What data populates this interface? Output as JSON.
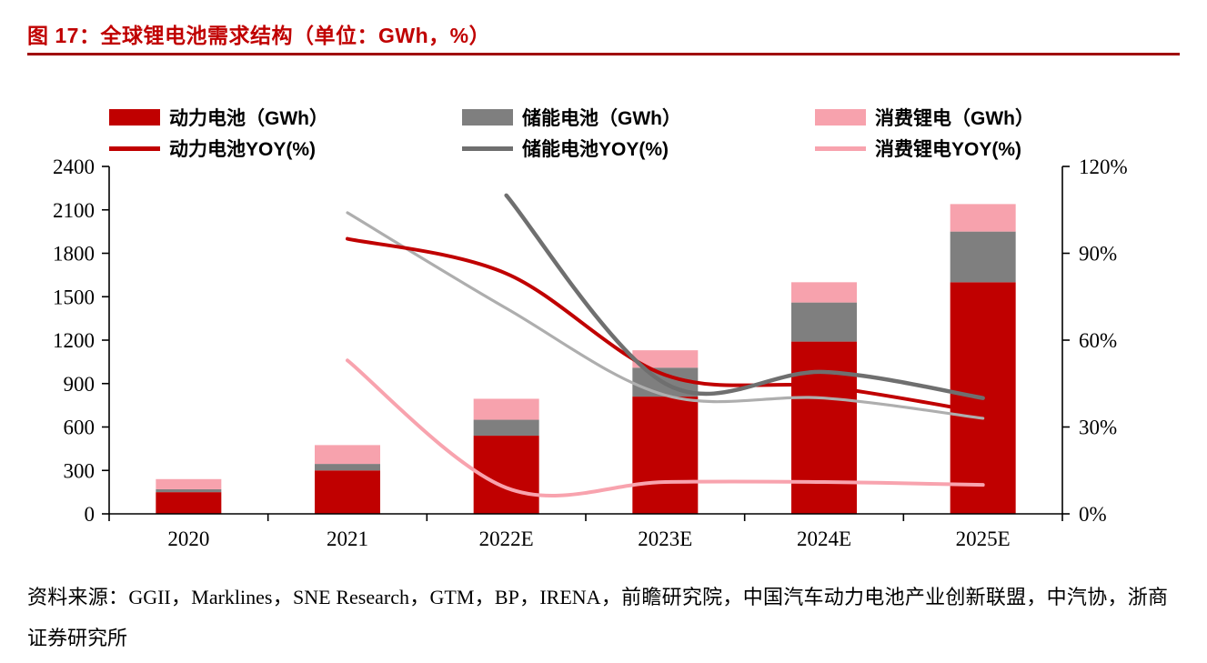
{
  "figure": {
    "title": "图 17：全球锂电池需求结构（单位：GWh，%）"
  },
  "source": {
    "text": "资料来源：GGII，Marklines，SNE Research，GTM，BP，IRENA，前瞻研究院，中国汽车动力电池产业创新联盟，中汽协，浙商证券研究所"
  },
  "colors": {
    "title_red": "#c00000",
    "divider_red": "#a00000",
    "bar_red": "#c00000",
    "bar_gray": "#7f7f7f",
    "bar_pink": "#f7a2ad",
    "line_red": "#c00000",
    "line_dark_gray": "#6f6f6f",
    "line_pink": "#f8a3ae",
    "line_light_gray": "#aeaeae"
  },
  "chart_data": {
    "type": "bar",
    "subtype": "stacked-bars-with-yoy-lines",
    "title": "全球锂电池需求结构（单位：GWh，%）",
    "categories": [
      "2020",
      "2021",
      "2022E",
      "2023E",
      "2024E",
      "2025E"
    ],
    "bar_series": [
      {
        "name": "动力电池（GWh）",
        "color": "#c00000",
        "values": [
          150,
          300,
          540,
          810,
          1190,
          1600
        ]
      },
      {
        "name": "储能电池（GWh）",
        "color": "#7f7f7f",
        "values": [
          20,
          45,
          110,
          200,
          270,
          350
        ]
      },
      {
        "name": "消费锂电（GWh）",
        "color": "#f7a2ad",
        "values": [
          70,
          130,
          145,
          120,
          140,
          190
        ]
      }
    ],
    "line_series": [
      {
        "name": "动力电池YOY(%)",
        "color": "#c00000",
        "axis": "right",
        "values": [
          null,
          95,
          83,
          48,
          44,
          35
        ],
        "in_legend": true
      },
      {
        "name": "储能电池YOY(%)",
        "color": "#6f6f6f",
        "axis": "right",
        "values": [
          null,
          null,
          110,
          45,
          49,
          40
        ],
        "in_legend": true
      },
      {
        "name": "消费锂电YOY(%)",
        "color": "#f8a3ae",
        "axis": "right",
        "values": [
          null,
          53,
          9,
          11,
          11,
          10
        ],
        "in_legend": true
      },
      {
        "name": "(未标注浅灰曲线)",
        "color": "#aeaeae",
        "axis": "right",
        "values": [
          null,
          104,
          71,
          41,
          40,
          33
        ],
        "in_legend": false
      }
    ],
    "left_axis": {
      "min": 0,
      "max": 2400,
      "step": 300,
      "ticks": [
        "0",
        "300",
        "600",
        "900",
        "1200",
        "1500",
        "1800",
        "2100",
        "2400"
      ]
    },
    "right_axis": {
      "min": 0,
      "max": 120,
      "step": 30,
      "ticks": [
        "0%",
        "30%",
        "60%",
        "90%",
        "120%"
      ]
    },
    "grid": false,
    "legend_position": "top"
  }
}
